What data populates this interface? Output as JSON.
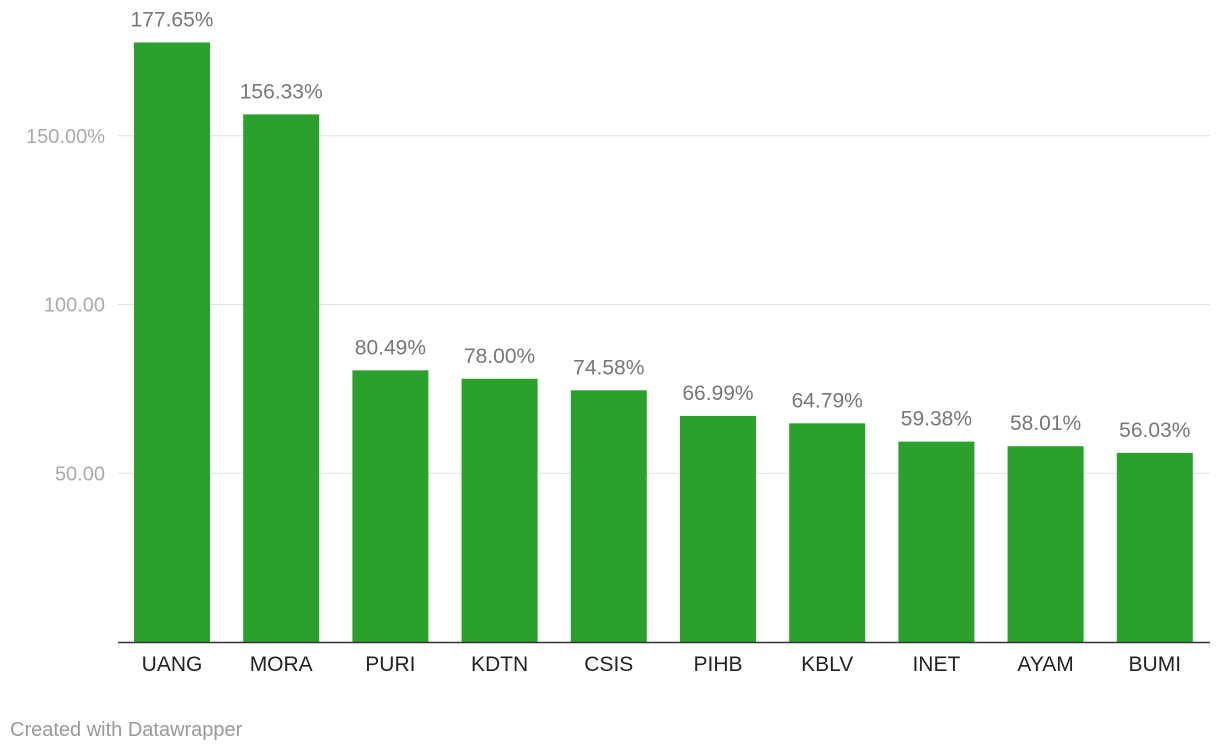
{
  "chart_data": {
    "type": "bar",
    "categories": [
      "UANG",
      "MORA",
      "PURI",
      "KDTN",
      "CSIS",
      "PIHB",
      "KBLV",
      "INET",
      "AYAM",
      "BUMI"
    ],
    "values": [
      177.65,
      156.33,
      80.49,
      78.0,
      74.58,
      66.99,
      64.79,
      59.38,
      58.01,
      56.03
    ],
    "value_labels": [
      "177.65%",
      "156.33%",
      "80.49%",
      "78.00%",
      "74.58%",
      "66.99%",
      "64.79%",
      "59.38%",
      "58.01%",
      "56.03%"
    ],
    "y_ticks": [
      50,
      100,
      150
    ],
    "y_tick_labels": [
      "50.00",
      "100.00",
      "150.00%"
    ],
    "ylim": [
      0,
      190
    ],
    "grid": true,
    "bar_color": "#2ca02c",
    "title": "",
    "xlabel": "",
    "ylabel": ""
  },
  "footer": {
    "credit": "Created with Datawrapper"
  }
}
